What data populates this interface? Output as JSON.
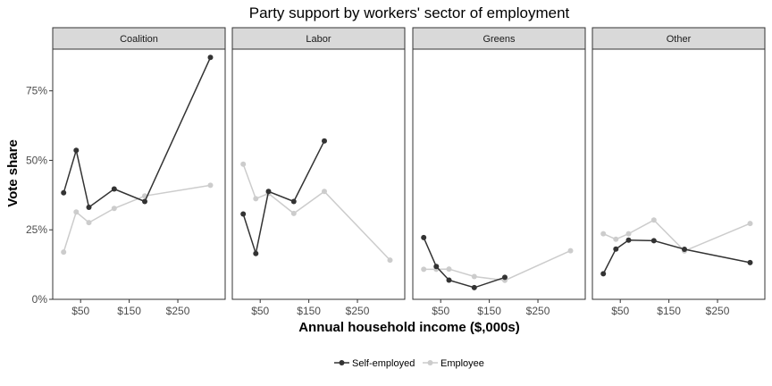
{
  "chart_data": {
    "type": "line",
    "title": "Party support by workers' sector of employment",
    "xlabel": "Annual household income ($,000s)",
    "ylabel": "Vote share",
    "xlim": [
      0,
      340
    ],
    "ylim": [
      0,
      0.9
    ],
    "x_ticks": [
      50,
      150,
      250
    ],
    "x_tick_labels": [
      "$50",
      "$150",
      "$250"
    ],
    "y_ticks": [
      0,
      0.25,
      0.5,
      0.75
    ],
    "y_tick_labels": [
      "0%",
      "25%",
      "50%",
      "75%"
    ],
    "grid": false,
    "legend_position": "bottom",
    "legend": [
      "Self-employed",
      "Employee"
    ],
    "colors": {
      "Self-employed": "#333333",
      "Employee": "#cccccc"
    },
    "panels": [
      {
        "label": "Coalition",
        "series": [
          {
            "name": "Self-employed",
            "x": [
              15,
              41,
              67,
              119,
              182,
              317
            ],
            "y": [
              0.383,
              0.536,
              0.331,
              0.397,
              0.352,
              0.87
            ]
          },
          {
            "name": "Employee",
            "x": [
              15,
              41,
              67,
              119,
              182,
              317
            ],
            "y": [
              0.17,
              0.314,
              0.276,
              0.327,
              0.372,
              0.41
            ]
          }
        ]
      },
      {
        "label": "Labor",
        "series": [
          {
            "name": "Self-employed",
            "x": [
              15,
              41,
              67,
              119,
              182
            ],
            "y": [
              0.307,
              0.165,
              0.388,
              0.352,
              0.57
            ]
          },
          {
            "name": "Employee",
            "x": [
              15,
              41,
              67,
              119,
              182,
              317
            ],
            "y": [
              0.486,
              0.362,
              0.381,
              0.309,
              0.388,
              0.141
            ]
          }
        ]
      },
      {
        "label": "Greens",
        "series": [
          {
            "name": "Self-employed",
            "x": [
              15,
              41,
              67,
              119,
              182
            ],
            "y": [
              0.222,
              0.118,
              0.069,
              0.042,
              0.079
            ]
          },
          {
            "name": "Employee",
            "x": [
              15,
              41,
              67,
              119,
              182,
              317
            ],
            "y": [
              0.108,
              0.108,
              0.109,
              0.082,
              0.068,
              0.175
            ]
          }
        ]
      },
      {
        "label": "Other",
        "series": [
          {
            "name": "Self-employed",
            "x": [
              15,
              41,
              67,
              119,
              182,
              317
            ],
            "y": [
              0.092,
              0.181,
              0.213,
              0.211,
              0.18,
              0.132
            ]
          },
          {
            "name": "Employee",
            "x": [
              15,
              41,
              67,
              119,
              182,
              317
            ],
            "y": [
              0.236,
              0.216,
              0.236,
              0.285,
              0.174,
              0.273
            ]
          }
        ]
      }
    ]
  }
}
